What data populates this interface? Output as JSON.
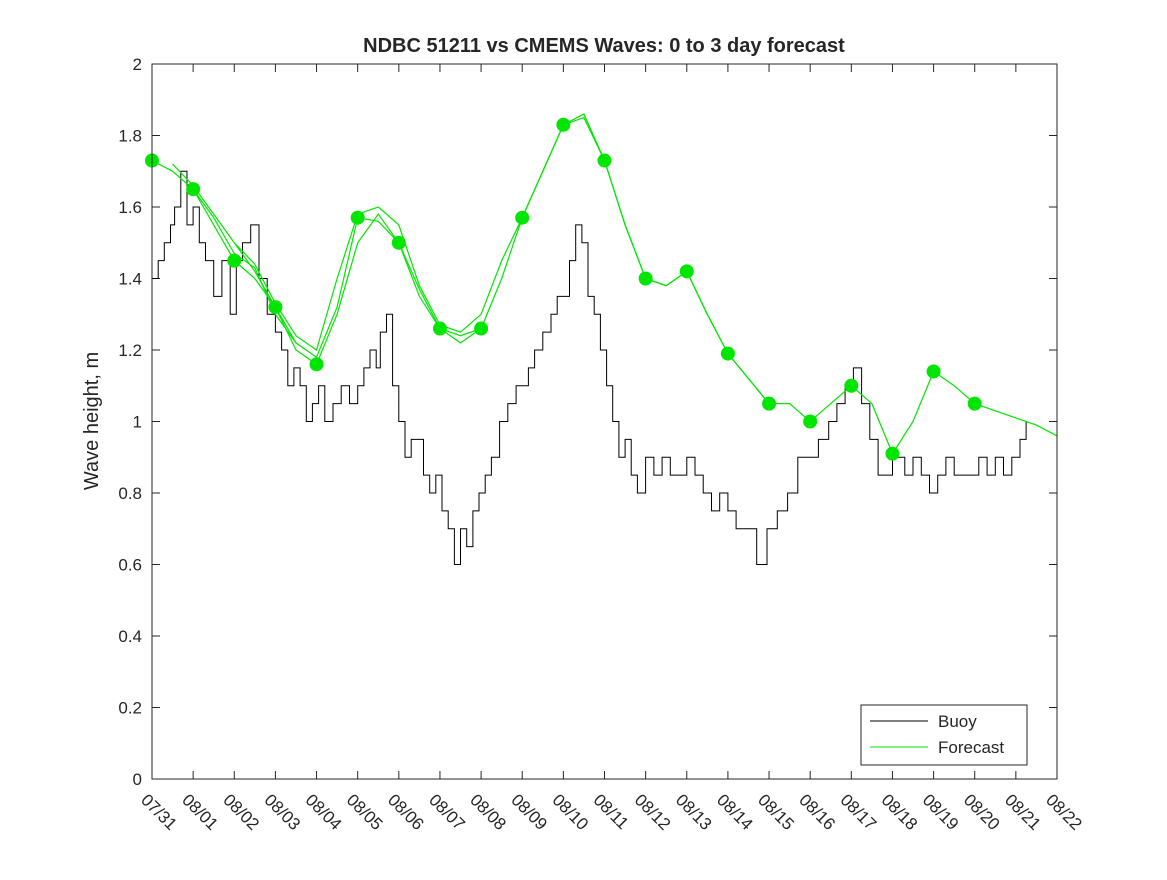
{
  "chart_data": {
    "type": "line",
    "title": "NDBC 51211 vs CMEMS Waves: 0 to 3 day forecast",
    "xlabel": "",
    "ylabel": "Wave height, m",
    "ylim": [
      0,
      2
    ],
    "yticks": [
      "0",
      "0.2",
      "0.4",
      "0.6",
      "0.8",
      "1",
      "1.2",
      "1.4",
      "1.6",
      "1.8",
      "2"
    ],
    "xlim": [
      0,
      22
    ],
    "xticks": [
      "07/31",
      "08/01",
      "08/02",
      "08/03",
      "08/04",
      "08/05",
      "08/06",
      "08/07",
      "08/08",
      "08/09",
      "08/10",
      "08/11",
      "08/12",
      "08/13",
      "08/14",
      "08/15",
      "08/16",
      "08/17",
      "08/18",
      "08/19",
      "08/20",
      "08/21",
      "08/22"
    ],
    "legend": {
      "position": "bottom-right",
      "entries": [
        "Buoy",
        "Forecast"
      ]
    },
    "colors": {
      "buoy": "#000000",
      "forecast": "#00e600",
      "axis": "#262626"
    },
    "series": [
      {
        "name": "Buoy",
        "x": [
          0.0,
          0.15,
          0.3,
          0.45,
          0.55,
          0.7,
          0.85,
          1.0,
          1.15,
          1.3,
          1.5,
          1.7,
          1.9,
          2.05,
          2.2,
          2.4,
          2.6,
          2.8,
          3.0,
          3.15,
          3.3,
          3.45,
          3.6,
          3.75,
          3.9,
          4.05,
          4.2,
          4.4,
          4.6,
          4.8,
          5.0,
          5.15,
          5.3,
          5.45,
          5.55,
          5.7,
          5.85,
          6.0,
          6.15,
          6.3,
          6.45,
          6.6,
          6.75,
          6.9,
          7.05,
          7.2,
          7.35,
          7.5,
          7.65,
          7.8,
          7.95,
          8.1,
          8.25,
          8.45,
          8.65,
          8.85,
          9.0,
          9.15,
          9.3,
          9.5,
          9.7,
          9.85,
          10.0,
          10.15,
          10.3,
          10.45,
          10.6,
          10.75,
          10.9,
          11.05,
          11.2,
          11.35,
          11.5,
          11.65,
          11.8,
          12.0,
          12.2,
          12.4,
          12.6,
          12.8,
          13.0,
          13.2,
          13.4,
          13.6,
          13.8,
          14.0,
          14.2,
          14.45,
          14.7,
          14.95,
          15.2,
          15.45,
          15.7,
          15.95,
          16.2,
          16.45,
          16.65,
          16.85,
          17.05,
          17.25,
          17.45,
          17.65,
          17.85,
          18.0,
          18.15,
          18.3,
          18.5,
          18.7,
          18.9,
          19.1,
          19.3,
          19.5,
          19.7,
          19.9,
          20.1,
          20.3,
          20.5,
          20.7,
          20.9,
          21.1,
          21.25
        ],
        "values": [
          1.4,
          1.45,
          1.5,
          1.55,
          1.6,
          1.7,
          1.55,
          1.6,
          1.5,
          1.45,
          1.35,
          1.45,
          1.3,
          1.45,
          1.5,
          1.55,
          1.4,
          1.3,
          1.25,
          1.2,
          1.1,
          1.15,
          1.1,
          1.0,
          1.05,
          1.1,
          1.0,
          1.05,
          1.1,
          1.05,
          1.1,
          1.15,
          1.2,
          1.15,
          1.25,
          1.3,
          1.1,
          1.0,
          0.9,
          0.95,
          0.95,
          0.85,
          0.8,
          0.85,
          0.75,
          0.7,
          0.6,
          0.7,
          0.65,
          0.75,
          0.8,
          0.85,
          0.9,
          1.0,
          1.05,
          1.1,
          1.1,
          1.15,
          1.2,
          1.25,
          1.3,
          1.35,
          1.35,
          1.45,
          1.55,
          1.5,
          1.35,
          1.3,
          1.2,
          1.1,
          1.0,
          0.9,
          0.95,
          0.85,
          0.8,
          0.9,
          0.85,
          0.9,
          0.85,
          0.85,
          0.9,
          0.85,
          0.8,
          0.75,
          0.8,
          0.75,
          0.7,
          0.7,
          0.6,
          0.7,
          0.75,
          0.8,
          0.9,
          0.9,
          0.95,
          1.0,
          1.05,
          1.1,
          1.15,
          1.05,
          0.95,
          0.85,
          0.85,
          0.9,
          0.9,
          0.85,
          0.9,
          0.85,
          0.8,
          0.85,
          0.9,
          0.85,
          0.85,
          0.85,
          0.9,
          0.85,
          0.9,
          0.85,
          0.9,
          0.95,
          1.0
        ]
      },
      {
        "name": "Forecast",
        "runs": [
          {
            "x": [
              0.0,
              0.5,
              1.0,
              1.5,
              2.0,
              2.5,
              3.0,
              3.5,
              4.0
            ],
            "values": [
              1.73,
              1.7,
              1.65,
              1.55,
              1.45,
              1.4,
              1.32,
              1.2,
              1.16
            ]
          },
          {
            "x": [
              0.5,
              1.0,
              1.5,
              2.0,
              2.5,
              3.0,
              3.5
            ],
            "values": [
              1.72,
              1.66,
              1.58,
              1.5,
              1.42,
              1.32,
              1.22
            ]
          },
          {
            "x": [
              1.0,
              1.5,
              2.0,
              2.5,
              3.0,
              3.5,
              4.0,
              4.5,
              5.0,
              5.5,
              6.0,
              6.5,
              7.0,
              7.5,
              8.0
            ],
            "values": [
              1.65,
              1.57,
              1.47,
              1.43,
              1.3,
              1.22,
              1.18,
              1.32,
              1.57,
              1.56,
              1.5,
              1.35,
              1.26,
              1.22,
              1.26
            ]
          },
          {
            "x": [
              2.0,
              2.5,
              3.0,
              3.5,
              4.0,
              4.5,
              5.0,
              5.5,
              6.0,
              6.5,
              7.0,
              7.5,
              8.0,
              8.5,
              9.0,
              9.5,
              10.0,
              10.5,
              11.0,
              11.5,
              12.0,
              12.5,
              13.0,
              13.5,
              14.0,
              14.5,
              15.0
            ],
            "values": [
              1.5,
              1.44,
              1.33,
              1.24,
              1.2,
              1.4,
              1.58,
              1.6,
              1.55,
              1.38,
              1.27,
              1.25,
              1.3,
              1.45,
              1.57,
              1.7,
              1.83,
              1.86,
              1.73,
              1.55,
              1.4,
              1.38,
              1.42,
              1.3,
              1.19,
              1.12,
              1.05
            ]
          },
          {
            "x": [
              4.0,
              4.5,
              5.0,
              5.5,
              6.0,
              6.5,
              7.0,
              7.5,
              8.0,
              8.5,
              9.0,
              9.5,
              10.0,
              10.5,
              11.0,
              11.5,
              12.0,
              12.5,
              13.0,
              13.5,
              14.0,
              14.5,
              15.0,
              15.5,
              16.0,
              16.5,
              17.0,
              17.5,
              18.0,
              18.5,
              19.0,
              19.5,
              20.0,
              20.5,
              21.0,
              21.5,
              22.0
            ],
            "values": [
              1.16,
              1.3,
              1.5,
              1.58,
              1.5,
              1.37,
              1.26,
              1.24,
              1.26,
              1.4,
              1.57,
              1.7,
              1.83,
              1.85,
              1.73,
              1.55,
              1.4,
              1.38,
              1.42,
              1.3,
              1.19,
              1.12,
              1.05,
              1.05,
              1.0,
              1.05,
              1.1,
              1.05,
              0.91,
              1.0,
              1.14,
              1.1,
              1.05,
              1.03,
              1.01,
              0.99,
              0.96
            ]
          }
        ],
        "markers": {
          "x": [
            0,
            1,
            2,
            3,
            4,
            5,
            6,
            7,
            8,
            9,
            10,
            11,
            12,
            13,
            14,
            15,
            16,
            17,
            18,
            19,
            20
          ],
          "values": [
            1.73,
            1.65,
            1.45,
            1.32,
            1.16,
            1.57,
            1.5,
            1.26,
            1.26,
            1.57,
            1.83,
            1.73,
            1.4,
            1.42,
            1.19,
            1.05,
            1.0,
            1.1,
            0.91,
            1.14,
            1.05
          ]
        }
      }
    ]
  }
}
